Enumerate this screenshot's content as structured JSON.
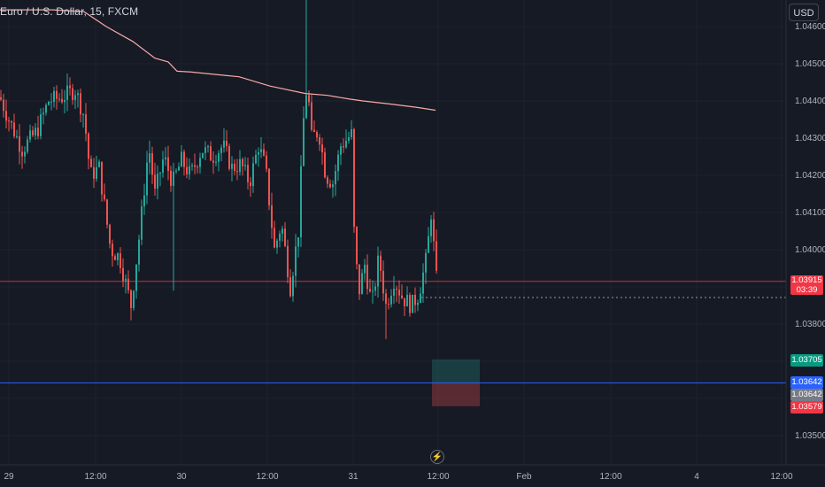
{
  "header": {
    "title": "Euro / U.S. Dollar, 15, FXCM",
    "currency_button": "USD"
  },
  "colors": {
    "background": "#161a25",
    "up": "#26a69a",
    "down": "#ef5350",
    "ma_line": "#f7a9a8",
    "price_line": "#f23645",
    "blue_line": "#2962ff",
    "grid": "#1e222d"
  },
  "chart_data": {
    "type": "candlestick",
    "y_axis": {
      "range": [
        1.0345,
        1.0466
      ],
      "ticks": [
        "1.04600",
        "1.04500",
        "1.04400",
        "1.04300",
        "1.04200",
        "1.04100",
        "1.04000",
        "1.03800",
        "1.03500"
      ]
    },
    "x_axis": {
      "ticks": [
        "29",
        "12:00",
        "30",
        "12:00",
        "31",
        "12:00",
        "Feb",
        "12:00",
        "4",
        "12:00"
      ]
    },
    "levels": {
      "current_price": "1.03915",
      "countdown": "03:39",
      "target": "1.03705",
      "blue_line": "1.03642",
      "entry": "1.03642",
      "stop": "1.03579"
    },
    "waypoints": [
      [
        0,
        1.0441
      ],
      [
        10,
        1.0435
      ],
      [
        25,
        1.0427
      ],
      [
        42,
        1.0432
      ],
      [
        55,
        1.044
      ],
      [
        70,
        1.0441
      ],
      [
        85,
        1.0443
      ],
      [
        95,
        1.0436
      ],
      [
        102,
        1.042
      ],
      [
        112,
        1.0422
      ],
      [
        125,
        1.04
      ],
      [
        135,
        1.0398
      ],
      [
        148,
        1.0385
      ],
      [
        158,
        1.0405
      ],
      [
        168,
        1.0428
      ],
      [
        175,
        1.0415
      ],
      [
        185,
        1.0425
      ],
      [
        195,
        1.0418
      ],
      [
        205,
        1.0424
      ],
      [
        215,
        1.042
      ],
      [
        228,
        1.0427
      ],
      [
        240,
        1.0425
      ],
      [
        252,
        1.0428
      ],
      [
        262,
        1.0422
      ],
      [
        272,
        1.0423
      ],
      [
        282,
        1.0418
      ],
      [
        292,
        1.0428
      ],
      [
        300,
        1.0422
      ],
      [
        310,
        1.04
      ],
      [
        318,
        1.0407
      ],
      [
        328,
        1.039
      ],
      [
        337,
        1.0405
      ],
      [
        343,
        1.0435
      ],
      [
        347,
        1.0445
      ],
      [
        352,
        1.043
      ],
      [
        360,
        1.0432
      ],
      [
        368,
        1.042
      ],
      [
        376,
        1.0418
      ],
      [
        385,
        1.0428
      ],
      [
        397,
        1.0431
      ],
      [
        400,
        1.0405
      ],
      [
        405,
        1.0388
      ],
      [
        412,
        1.0396
      ],
      [
        420,
        1.0385
      ],
      [
        428,
        1.0398
      ],
      [
        436,
        1.0385
      ],
      [
        445,
        1.0392
      ],
      [
        455,
        1.0387
      ],
      [
        465,
        1.0385
      ],
      [
        473,
        1.0388
      ],
      [
        482,
        1.0398
      ],
      [
        487,
        1.041
      ],
      [
        493,
        1.0392
      ]
    ],
    "wick_spikes": [
      {
        "x": 347,
        "high": 1.0469
      },
      {
        "x": 437,
        "low": 1.0376
      },
      {
        "x": 196,
        "low": 1.0389
      },
      {
        "x": 148,
        "low": 1.0381
      }
    ],
    "moving_average": [
      [
        0,
        1.04645
      ],
      [
        60,
        1.04645
      ],
      [
        95,
        1.0464
      ],
      [
        120,
        1.046
      ],
      [
        150,
        1.0456
      ],
      [
        175,
        1.04515
      ],
      [
        190,
        1.04505
      ],
      [
        200,
        1.0448
      ],
      [
        215,
        1.04478
      ],
      [
        270,
        1.04465
      ],
      [
        305,
        1.0444
      ],
      [
        345,
        1.0442
      ],
      [
        370,
        1.04415
      ],
      [
        395,
        1.04405
      ],
      [
        410,
        1.044
      ],
      [
        440,
        1.04392
      ],
      [
        470,
        1.04383
      ],
      [
        492,
        1.04375
      ]
    ],
    "position_box": {
      "x_start": 488,
      "x_end": 542
    }
  }
}
